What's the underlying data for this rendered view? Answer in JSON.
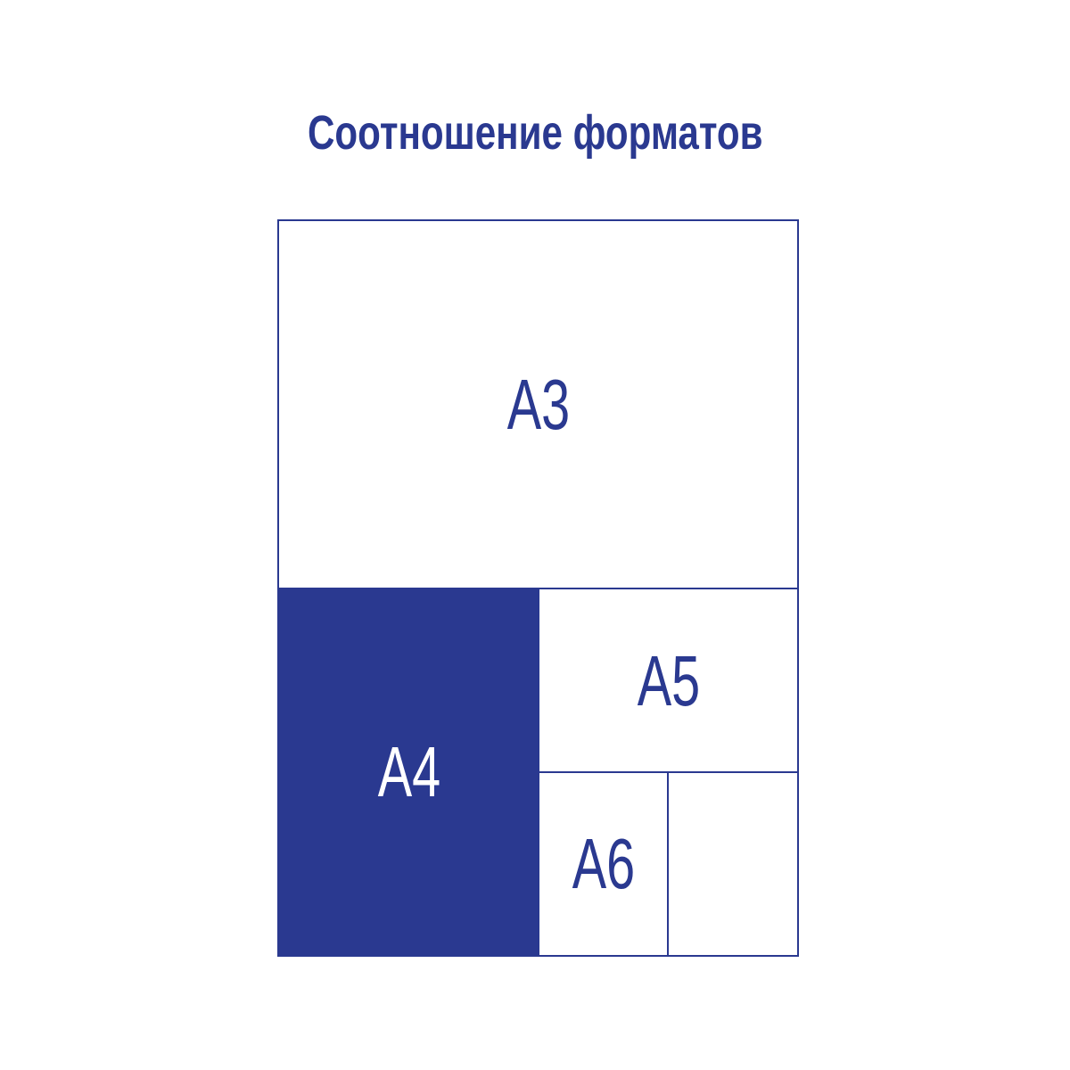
{
  "title": "Соотношение форматов",
  "colors": {
    "accent": "#2a3990",
    "background": "#ffffff"
  },
  "formats": {
    "a3": "A3",
    "a4": "A4",
    "a5": "A5",
    "a6": "A6"
  }
}
